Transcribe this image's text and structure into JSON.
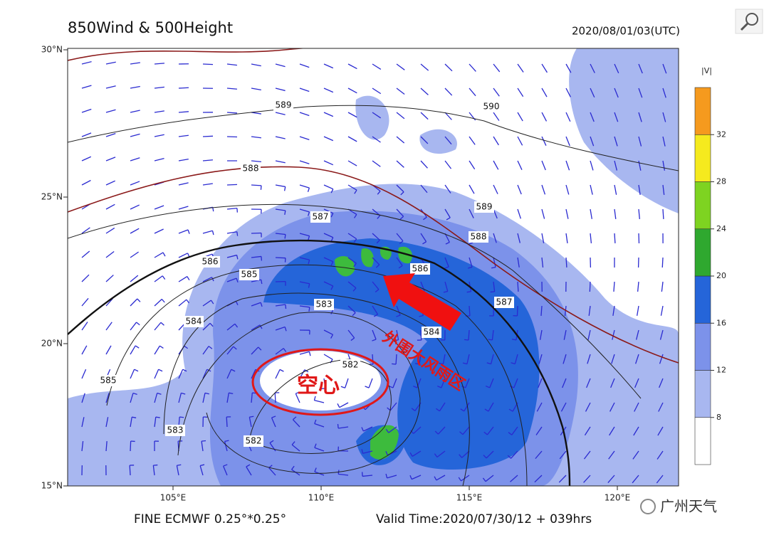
{
  "header": {
    "title": "850Wind & 500Height",
    "date": "2020/08/01/03(UTC)"
  },
  "axes": {
    "lat_labels": [
      "30°N",
      "25°N",
      "20°N",
      "15°N"
    ],
    "lon_labels": [
      "105°E",
      "110°E",
      "115°E",
      "120°E"
    ]
  },
  "contour_labels": [
    "589",
    "590",
    "588",
    "589",
    "588",
    "587",
    "587",
    "586",
    "586",
    "585",
    "585",
    "584",
    "584",
    "583",
    "583",
    "582",
    "582"
  ],
  "colorbar": {
    "title": "|V|",
    "labels": [
      "8",
      "12",
      "16",
      "20",
      "24",
      "28",
      "32"
    ],
    "colors": [
      "#ffffff",
      "#a8b7f0",
      "#7c92ea",
      "#2565d9",
      "#2fa82f",
      "#7ed321",
      "#f5ea1e",
      "#f59a1e"
    ]
  },
  "annotations": {
    "core": "空心",
    "rain_zone": "外围大风雨区"
  },
  "footer": {
    "model": "FINE ECMWF 0.25°*0.25°",
    "valid_time": "Valid Time:2020/07/30/12 + 039hrs"
  },
  "watermark": "广州天气"
}
